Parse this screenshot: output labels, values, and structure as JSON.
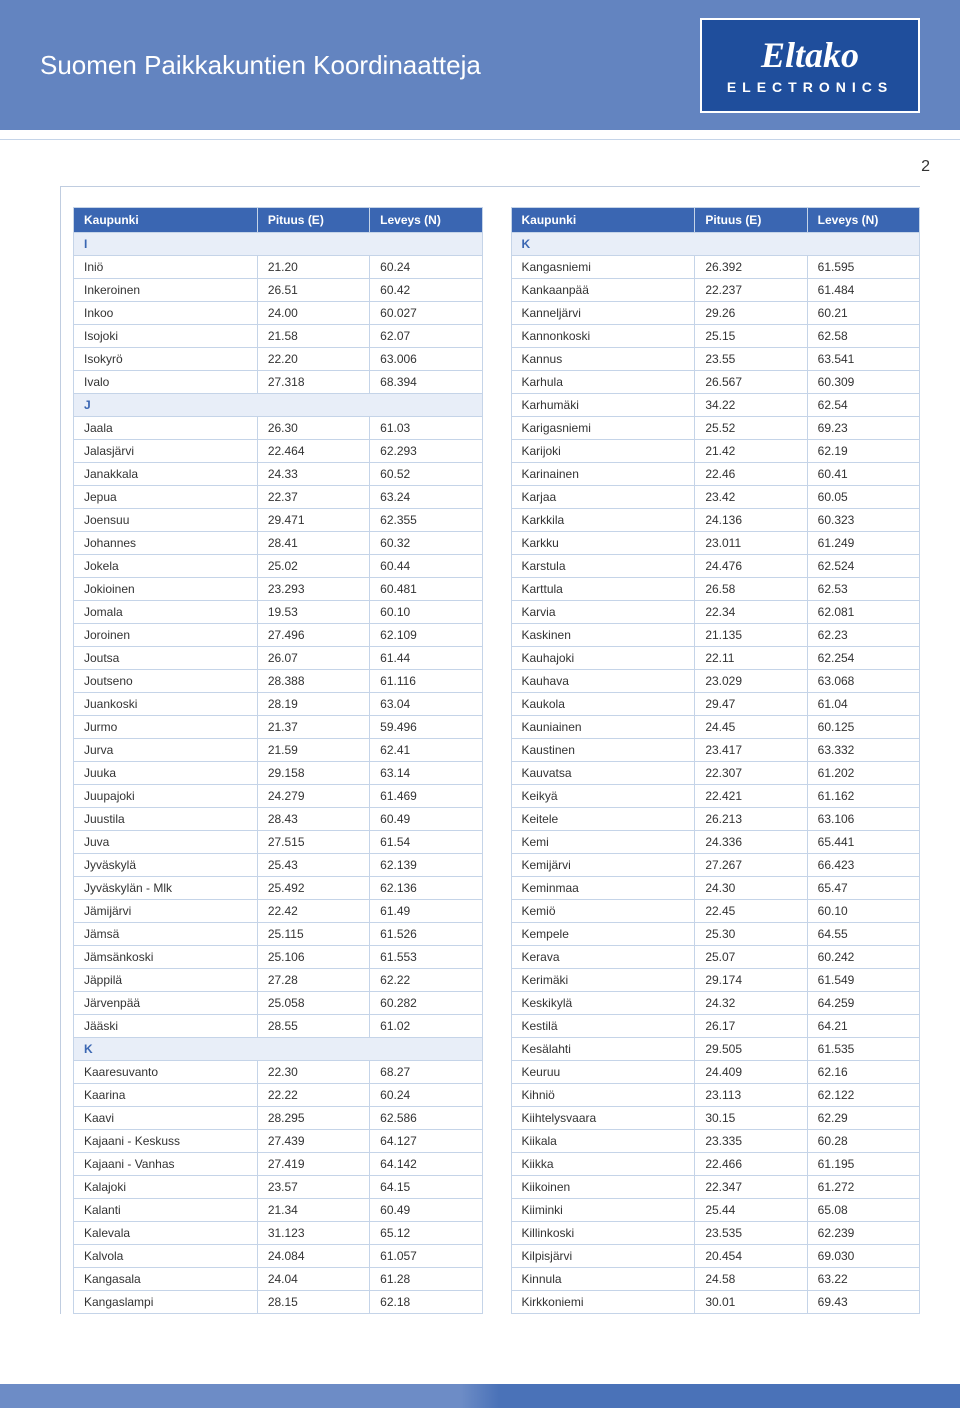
{
  "header": {
    "title": "Suomen Paikkakuntien Koordinaatteja",
    "logo_main": "Eltako",
    "logo_sub": "ELECTRONICS"
  },
  "page_number": "2",
  "columns": {
    "city": "Kaupunki",
    "e": "Pituus (E)",
    "n": "Leveys (N)"
  },
  "left": [
    {
      "section": "I"
    },
    {
      "c": "Iniö",
      "e": "21.20",
      "n": "60.24"
    },
    {
      "c": "Inkeroinen",
      "e": "26.51",
      "n": "60.42"
    },
    {
      "c": "Inkoo",
      "e": "24.00",
      "n": "60.027"
    },
    {
      "c": "Isojoki",
      "e": "21.58",
      "n": "62.07"
    },
    {
      "c": "Isokyrö",
      "e": "22.20",
      "n": "63.006"
    },
    {
      "c": "Ivalo",
      "e": "27.318",
      "n": "68.394"
    },
    {
      "section": "J"
    },
    {
      "c": "Jaala",
      "e": "26.30",
      "n": "61.03"
    },
    {
      "c": "Jalasjärvi",
      "e": "22.464",
      "n": "62.293"
    },
    {
      "c": "Janakkala",
      "e": "24.33",
      "n": "60.52"
    },
    {
      "c": "Jepua",
      "e": "22.37",
      "n": "63.24"
    },
    {
      "c": "Joensuu",
      "e": "29.471",
      "n": "62.355"
    },
    {
      "c": "Johannes",
      "e": "28.41",
      "n": "60.32"
    },
    {
      "c": "Jokela",
      "e": "25.02",
      "n": "60.44"
    },
    {
      "c": "Jokioinen",
      "e": "23.293",
      "n": "60.481"
    },
    {
      "c": "Jomala",
      "e": "19.53",
      "n": "60.10"
    },
    {
      "c": "Joroinen",
      "e": "27.496",
      "n": "62.109"
    },
    {
      "c": "Joutsa",
      "e": "26.07",
      "n": "61.44"
    },
    {
      "c": "Joutseno",
      "e": "28.388",
      "n": "61.116"
    },
    {
      "c": "Juankoski",
      "e": "28.19",
      "n": "63.04"
    },
    {
      "c": "Jurmo",
      "e": "21.37",
      "n": "59.496"
    },
    {
      "c": "Jurva",
      "e": "21.59",
      "n": "62.41"
    },
    {
      "c": "Juuka",
      "e": "29.158",
      "n": "63.14"
    },
    {
      "c": "Juupajoki",
      "e": "24.279",
      "n": "61.469"
    },
    {
      "c": "Juustila",
      "e": "28.43",
      "n": "60.49"
    },
    {
      "c": "Juva",
      "e": "27.515",
      "n": "61.54"
    },
    {
      "c": "Jyväskylä",
      "e": "25.43",
      "n": "62.139"
    },
    {
      "c": "Jyväskylän - Mlk",
      "e": "25.492",
      "n": "62.136"
    },
    {
      "c": "Jämijärvi",
      "e": "22.42",
      "n": "61.49"
    },
    {
      "c": "Jämsä",
      "e": "25.115",
      "n": "61.526"
    },
    {
      "c": "Jämsänkoski",
      "e": "25.106",
      "n": "61.553"
    },
    {
      "c": "Jäppilä",
      "e": "27.28",
      "n": "62.22"
    },
    {
      "c": "Järvenpää",
      "e": "25.058",
      "n": "60.282"
    },
    {
      "c": "Jääski",
      "e": "28.55",
      "n": "61.02"
    },
    {
      "section": "K"
    },
    {
      "c": "Kaaresuvanto",
      "e": "22.30",
      "n": "68.27"
    },
    {
      "c": "Kaarina",
      "e": "22.22",
      "n": "60.24"
    },
    {
      "c": "Kaavi",
      "e": "28.295",
      "n": "62.586"
    },
    {
      "c": "Kajaani - Keskuss",
      "e": "27.439",
      "n": "64.127"
    },
    {
      "c": "Kajaani - Vanhas",
      "e": "27.419",
      "n": "64.142"
    },
    {
      "c": "Kalajoki",
      "e": "23.57",
      "n": "64.15"
    },
    {
      "c": "Kalanti",
      "e": "21.34",
      "n": "60.49"
    },
    {
      "c": "Kalevala",
      "e": "31.123",
      "n": "65.12"
    },
    {
      "c": "Kalvola",
      "e": "24.084",
      "n": "61.057"
    },
    {
      "c": "Kangasala",
      "e": "24.04",
      "n": "61.28"
    },
    {
      "c": "Kangaslampi",
      "e": "28.15",
      "n": "62.18"
    }
  ],
  "right": [
    {
      "section": "K"
    },
    {
      "c": "Kangasniemi",
      "e": "26.392",
      "n": "61.595"
    },
    {
      "c": "Kankaanpää",
      "e": "22.237",
      "n": "61.484"
    },
    {
      "c": "Kanneljärvi",
      "e": "29.26",
      "n": "60.21"
    },
    {
      "c": "Kannonkoski",
      "e": "25.15",
      "n": "62.58"
    },
    {
      "c": "Kannus",
      "e": "23.55",
      "n": "63.541"
    },
    {
      "c": "Karhula",
      "e": "26.567",
      "n": "60.309"
    },
    {
      "c": "Karhumäki",
      "e": "34.22",
      "n": "62.54"
    },
    {
      "c": "Karigasniemi",
      "e": "25.52",
      "n": "69.23"
    },
    {
      "c": "Karijoki",
      "e": "21.42",
      "n": "62.19"
    },
    {
      "c": "Karinainen",
      "e": "22.46",
      "n": "60.41"
    },
    {
      "c": "Karjaa",
      "e": "23.42",
      "n": "60.05"
    },
    {
      "c": "Karkkila",
      "e": "24.136",
      "n": "60.323"
    },
    {
      "c": "Karkku",
      "e": "23.011",
      "n": "61.249"
    },
    {
      "c": "Karstula",
      "e": "24.476",
      "n": "62.524"
    },
    {
      "c": "Karttula",
      "e": "26.58",
      "n": "62.53"
    },
    {
      "c": "Karvia",
      "e": "22.34",
      "n": "62.081"
    },
    {
      "c": "Kaskinen",
      "e": "21.135",
      "n": "62.23"
    },
    {
      "c": "Kauhajoki",
      "e": "22.11",
      "n": "62.254"
    },
    {
      "c": "Kauhava",
      "e": "23.029",
      "n": "63.068"
    },
    {
      "c": "Kaukola",
      "e": "29.47",
      "n": "61.04"
    },
    {
      "c": "Kauniainen",
      "e": "24.45",
      "n": "60.125"
    },
    {
      "c": "Kaustinen",
      "e": "23.417",
      "n": "63.332"
    },
    {
      "c": "Kauvatsa",
      "e": "22.307",
      "n": "61.202"
    },
    {
      "c": "Keikyä",
      "e": "22.421",
      "n": "61.162"
    },
    {
      "c": "Keitele",
      "e": "26.213",
      "n": "63.106"
    },
    {
      "c": "Kemi",
      "e": "24.336",
      "n": "65.441"
    },
    {
      "c": "Kemijärvi",
      "e": "27.267",
      "n": "66.423"
    },
    {
      "c": "Keminmaa",
      "e": "24.30",
      "n": "65.47"
    },
    {
      "c": "Kemiö",
      "e": "22.45",
      "n": "60.10"
    },
    {
      "c": "Kempele",
      "e": "25.30",
      "n": "64.55"
    },
    {
      "c": "Kerava",
      "e": "25.07",
      "n": "60.242"
    },
    {
      "c": "Kerimäki",
      "e": "29.174",
      "n": "61.549"
    },
    {
      "c": "Keskikylä",
      "e": "24.32",
      "n": "64.259"
    },
    {
      "c": "Kestilä",
      "e": "26.17",
      "n": "64.21"
    },
    {
      "c": "Kesälahti",
      "e": "29.505",
      "n": "61.535"
    },
    {
      "c": "Keuruu",
      "e": "24.409",
      "n": "62.16"
    },
    {
      "c": "Kihniö",
      "e": "23.113",
      "n": "62.122"
    },
    {
      "c": "Kiihtelysvaara",
      "e": "30.15",
      "n": "62.29"
    },
    {
      "c": "Kiikala",
      "e": "23.335",
      "n": "60.28"
    },
    {
      "c": "Kiikka",
      "e": "22.466",
      "n": "61.195"
    },
    {
      "c": "Kiikoinen",
      "e": "22.347",
      "n": "61.272"
    },
    {
      "c": "Kiiminki",
      "e": "25.44",
      "n": "65.08"
    },
    {
      "c": "Killinkoski",
      "e": "23.535",
      "n": "62.239"
    },
    {
      "c": "Kilpisjärvi",
      "e": "20.454",
      "n": "69.030"
    },
    {
      "c": "Kinnula",
      "e": "24.58",
      "n": "63.22"
    },
    {
      "c": "Kirkkoniemi",
      "e": "30.01",
      "n": "69.43"
    }
  ]
}
